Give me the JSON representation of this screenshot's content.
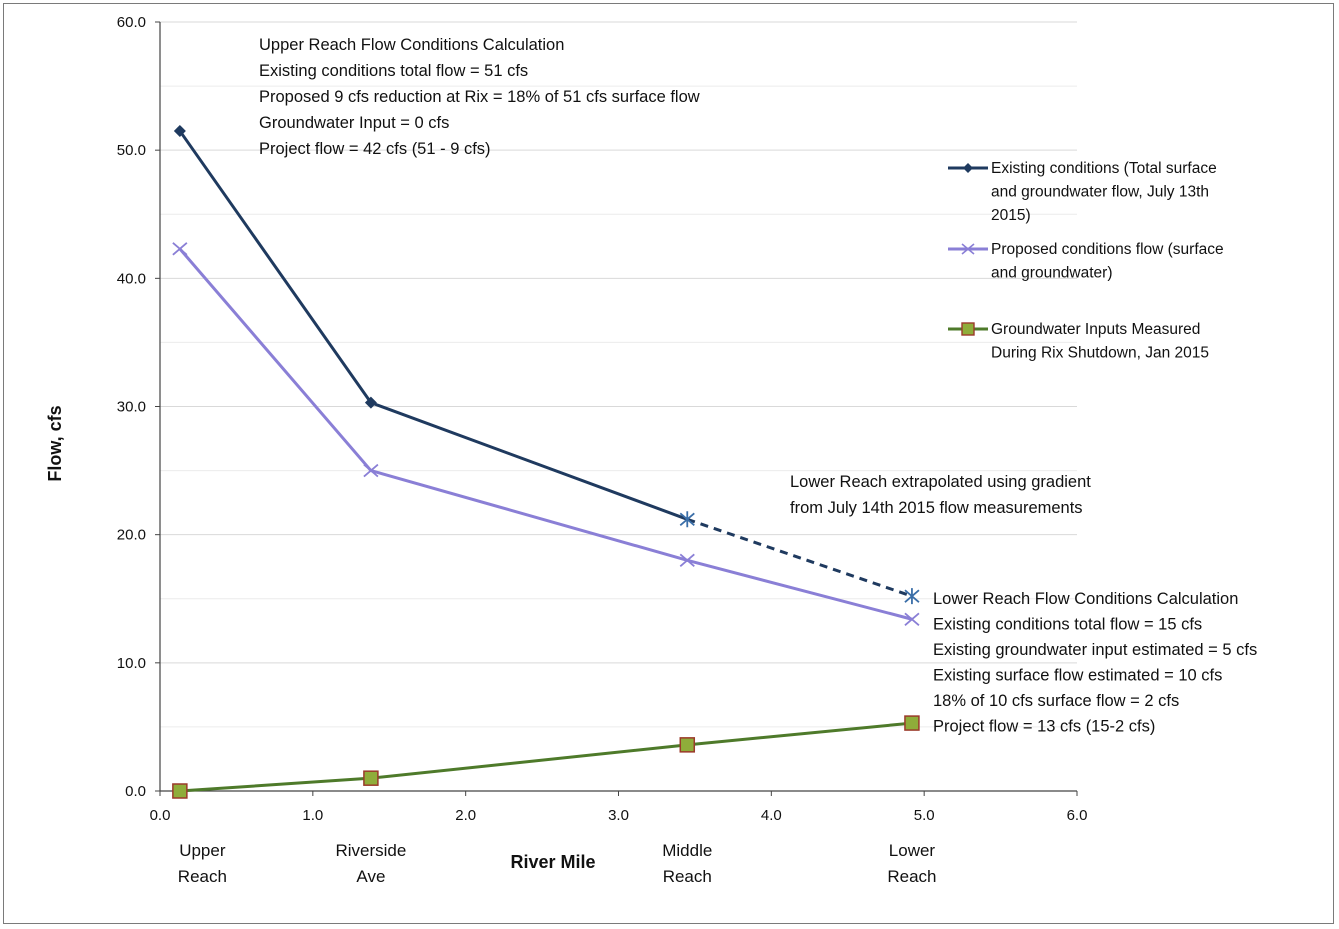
{
  "chart_data": {
    "type": "line",
    "xlabel": "River Mile",
    "ylabel": "Flow, cfs",
    "xlim": [
      0,
      6
    ],
    "ylim": [
      0,
      60
    ],
    "x_ticks": [
      "0.0",
      "1.0",
      "2.0",
      "3.0",
      "4.0",
      "5.0",
      "6.0"
    ],
    "y_ticks": [
      "0.0",
      "10.0",
      "20.0",
      "30.0",
      "40.0",
      "50.0",
      "60.0"
    ],
    "grid": "horizontal",
    "legend_position": "right",
    "categories": [
      {
        "x": 0.13,
        "lines": [
          "Upper",
          "Reach"
        ]
      },
      {
        "x": 1.38,
        "lines": [
          "Riverside",
          "Ave"
        ]
      },
      {
        "x": 3.45,
        "lines": [
          "Middle",
          "Reach"
        ]
      },
      {
        "x": 4.92,
        "lines": [
          "Lower",
          "Reach"
        ]
      }
    ],
    "series": [
      {
        "name": "Existing conditions (Total surface and groundwater flow, July 13th 2015)",
        "legend_lines": [
          "Existing conditions (Total surface",
          "and groundwater flow, July 13th",
          "2015)"
        ],
        "color": "#1f3a5f",
        "marker": "diamond",
        "x": [
          0.13,
          1.38,
          3.45,
          4.92
        ],
        "y": [
          51.5,
          30.3,
          21.2,
          15.2
        ],
        "dashed_last_segment": true
      },
      {
        "name": "Proposed conditions flow (surface and groundwater)",
        "legend_lines": [
          "Proposed conditions flow (surface",
          "and groundwater)"
        ],
        "color": "#8a7fd6",
        "marker": "x",
        "x": [
          0.13,
          1.38,
          3.45,
          4.92
        ],
        "y": [
          42.3,
          25.0,
          18.0,
          13.4
        ]
      },
      {
        "name": "Groundwater Inputs Measured During Rix Shutdown, Jan 2015",
        "legend_lines": [
          "Groundwater Inputs Measured",
          "During Rix Shutdown, Jan 2015"
        ],
        "color": "#4e7a2a",
        "marker": "square",
        "marker_fill": "#8fad3a",
        "marker_edge": "#9b3a2a",
        "x": [
          0.13,
          1.38,
          3.45,
          4.92
        ],
        "y": [
          0.0,
          1.0,
          3.6,
          5.3
        ]
      }
    ],
    "annotations": {
      "upper_reach": [
        "Upper Reach Flow Conditions Calculation",
        "Existing conditions total flow = 51 cfs",
        "Proposed 9 cfs reduction at Rix = 18% of 51 cfs surface flow",
        "Groundwater Input = 0 cfs",
        "Project flow = 42 cfs (51 - 9 cfs)"
      ],
      "extrapolation": [
        "Lower Reach extrapolated using gradient",
        "from July 14th 2015 flow measurements"
      ],
      "lower_reach": [
        "Lower Reach Flow Conditions Calculation",
        "Existing conditions total flow = 15 cfs",
        "Existing groundwater input estimated = 5 cfs",
        "Existing surface flow estimated = 10 cfs",
        "18% of 10 cfs surface flow = 2 cfs",
        "Project flow = 13 cfs (15-2 cfs)"
      ]
    }
  }
}
